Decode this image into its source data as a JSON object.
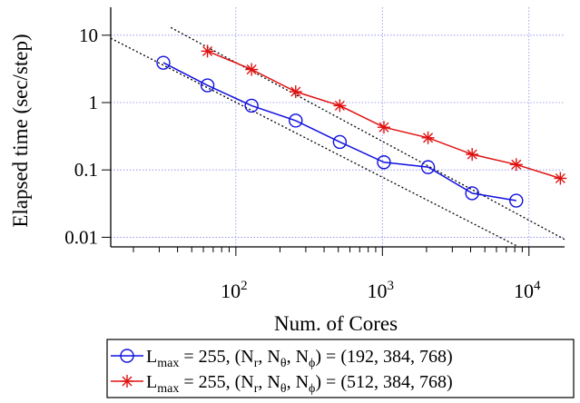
{
  "chart_data": {
    "type": "line",
    "xlabel": "Num. of Cores",
    "ylabel": "Elapsed time (sec/step)",
    "x_scale": "log",
    "y_scale": "log",
    "xlim": [
      14,
      17500
    ],
    "ylim": [
      0.0072,
      26
    ],
    "grid": true,
    "legend_position": "bottom",
    "x_ticks": [
      {
        "value": 100,
        "base": "10",
        "exp": "2"
      },
      {
        "value": 1000,
        "base": "10",
        "exp": "3"
      },
      {
        "value": 10000,
        "base": "10",
        "exp": "4"
      }
    ],
    "y_ticks": [
      {
        "value": 10,
        "label": "10"
      },
      {
        "value": 1,
        "label": "1"
      },
      {
        "value": 0.1,
        "label": "0.1"
      },
      {
        "value": 0.01,
        "label": "0.01"
      }
    ],
    "series": [
      {
        "color": "#1010e0",
        "marker": "circle",
        "legend": {
          "lmax": "L",
          "lmax_sub": "max",
          "lmax_rest": " = 255, (N",
          "sub_r": "r",
          "sep1": ", N",
          "sub_t": "θ",
          "sep2": ", N",
          "sub_p": "ϕ",
          "tail": ") = (192, 384, 768)"
        },
        "x": [
          32,
          64,
          128,
          256,
          512,
          1024,
          2048,
          4096,
          8192
        ],
        "y": [
          3.9,
          1.8,
          0.9,
          0.54,
          0.26,
          0.13,
          0.11,
          0.045,
          0.035
        ]
      },
      {
        "color": "#e01010",
        "marker": "star",
        "legend": {
          "lmax": "L",
          "lmax_sub": "max",
          "lmax_rest": " = 255, (N",
          "sub_r": "r",
          "sep1": ", N",
          "sub_t": "θ",
          "sep2": ", N",
          "sub_p": "ϕ",
          "tail": ") = (512, 384, 768)"
        },
        "x": [
          64,
          128,
          256,
          512,
          1024,
          2048,
          4096,
          8192,
          16384
        ],
        "y": [
          5.8,
          3.1,
          1.45,
          0.9,
          0.43,
          0.3,
          0.17,
          0.12,
          0.075
        ]
      }
    ],
    "reference_lines": [
      {
        "style": "dotted",
        "x": [
          14,
          8200
        ],
        "y": [
          9.0,
          0.0075
        ]
      },
      {
        "style": "dotted",
        "x": [
          36,
          17500
        ],
        "y": [
          13.0,
          0.0093
        ]
      }
    ]
  }
}
